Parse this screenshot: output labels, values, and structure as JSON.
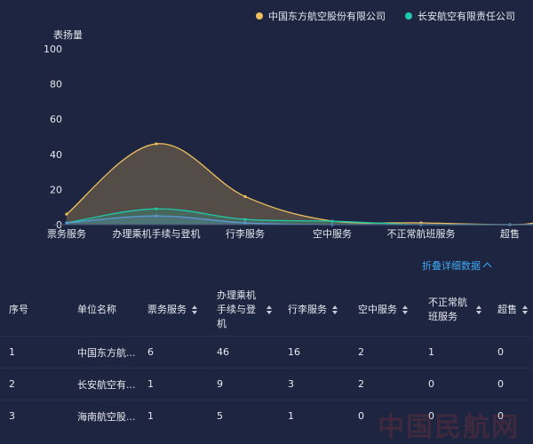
{
  "chart_data": {
    "type": "area",
    "categories": [
      "票务服务",
      "办理乘机手续与登机",
      "行李服务",
      "空中服务",
      "不正常航班服务",
      "超售"
    ],
    "series": [
      {
        "name": "中国东方航空股份有限公司",
        "values": [
          6,
          46,
          16,
          2,
          1,
          0
        ],
        "color": "#f0c060"
      },
      {
        "name": "长安航空有限责任公司",
        "values": [
          1,
          9,
          3,
          2,
          0,
          0
        ],
        "color": "#1fc9a8"
      },
      {
        "name": "",
        "values": [
          1,
          5,
          1,
          0,
          0,
          0
        ],
        "color": "#5a9ad8"
      }
    ],
    "ylabel": "表扬量",
    "yticks": [
      0,
      20,
      40,
      60,
      80,
      100
    ],
    "ylim": [
      0,
      100
    ]
  },
  "toggle_label": "折叠详细数据",
  "table": {
    "headers": [
      "序号",
      "单位名称",
      "票务服务",
      "办理乘机手续与登机",
      "行李服务",
      "空中服务",
      "不正常航班服务",
      "超售"
    ],
    "rows": [
      [
        "1",
        "中国东方航...",
        "6",
        "46",
        "16",
        "2",
        "1",
        "0"
      ],
      [
        "2",
        "长安航空有...",
        "1",
        "9",
        "3",
        "2",
        "0",
        "0"
      ],
      [
        "3",
        "海南航空股...",
        "1",
        "5",
        "1",
        "0",
        "0",
        "0"
      ]
    ]
  },
  "watermark": "中国民航网"
}
